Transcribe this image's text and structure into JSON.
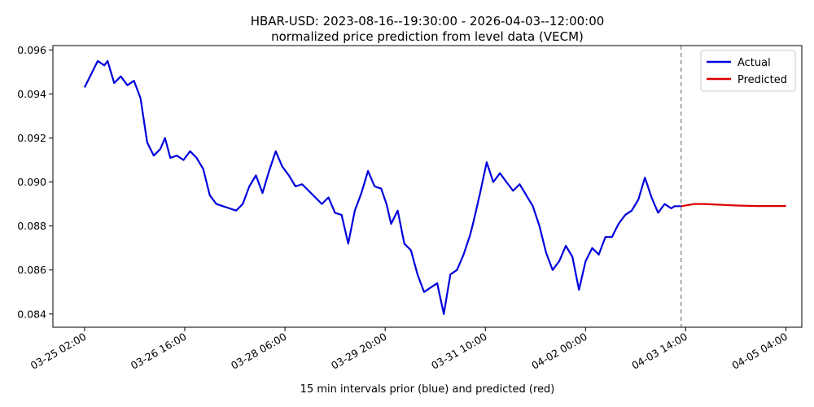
{
  "chart_data": {
    "type": "line",
    "title": "HBAR-USD: 2023-08-16--19:30:00 - 2026-04-03--12:00:00",
    "subtitle": "normalized price prediction from level data (VECM)",
    "xlabel": "15 min intervals prior (blue) and predicted (red)",
    "ylabel": "",
    "x_ticks": [
      "03-25 02:00",
      "03-26 16:00",
      "03-28 06:00",
      "03-29 20:00",
      "03-31 10:00",
      "04-02 00:00",
      "04-03 14:00",
      "04-05 04:00"
    ],
    "x_tick_index": [
      0,
      152,
      304,
      456,
      608,
      760,
      912,
      1064
    ],
    "xlim_index": [
      -48,
      1088
    ],
    "y_ticks": [
      "0.084",
      "0.086",
      "0.088",
      "0.090",
      "0.092",
      "0.094",
      "0.096"
    ],
    "ylim": [
      0.0834,
      0.0962
    ],
    "forecast_start_index": 905,
    "legend": {
      "position": "top-right",
      "items": [
        "Actual",
        "Predicted"
      ]
    },
    "colors": {
      "actual": "#0000dd",
      "predicted": "#dd0000",
      "divider": "#777777"
    },
    "series": [
      {
        "name": "Actual",
        "x": [
          0,
          10,
          20,
          30,
          35,
          45,
          55,
          65,
          75,
          85,
          95,
          105,
          115,
          122,
          130,
          140,
          150,
          160,
          170,
          180,
          190,
          200,
          210,
          220,
          230,
          240,
          250,
          260,
          270,
          280,
          290,
          300,
          310,
          320,
          330,
          340,
          350,
          360,
          370,
          380,
          390,
          400,
          410,
          420,
          430,
          440,
          450,
          458,
          465,
          475,
          485,
          495,
          505,
          515,
          525,
          535,
          545,
          555,
          565,
          575,
          585,
          590,
          600,
          610,
          620,
          630,
          640,
          650,
          660,
          670,
          680,
          690,
          700,
          710,
          720,
          730,
          740,
          750,
          760,
          770,
          780,
          790,
          800,
          810,
          820,
          830,
          840,
          850,
          860,
          870,
          880,
          890,
          895,
          905
        ],
        "values": [
          0.0943,
          0.0949,
          0.0955,
          0.0953,
          0.0955,
          0.0945,
          0.0948,
          0.0944,
          0.0946,
          0.0938,
          0.0918,
          0.0912,
          0.0915,
          0.092,
          0.0911,
          0.0912,
          0.091,
          0.0914,
          0.0911,
          0.0906,
          0.0894,
          0.089,
          0.0889,
          0.0888,
          0.0887,
          0.089,
          0.0898,
          0.0903,
          0.0895,
          0.0905,
          0.0914,
          0.0907,
          0.0903,
          0.0898,
          0.0899,
          0.0896,
          0.0893,
          0.089,
          0.0893,
          0.0886,
          0.0885,
          0.0872,
          0.0887,
          0.0895,
          0.0905,
          0.0898,
          0.0897,
          0.089,
          0.0881,
          0.0887,
          0.0872,
          0.0869,
          0.0858,
          0.085,
          0.0852,
          0.0854,
          0.084,
          0.0858,
          0.086,
          0.0867,
          0.0876,
          0.0882,
          0.0895,
          0.0909,
          0.09,
          0.0904,
          0.09,
          0.0896,
          0.0899,
          0.0894,
          0.0889,
          0.088,
          0.0868,
          0.086,
          0.0864,
          0.0871,
          0.0866,
          0.0851,
          0.0864,
          0.087,
          0.0867,
          0.0875,
          0.0875,
          0.0881,
          0.0885,
          0.0887,
          0.0892,
          0.0902,
          0.0893,
          0.0886,
          0.089,
          0.0888,
          0.0889,
          0.0889
        ]
      },
      {
        "name": "Predicted",
        "x": [
          905,
          915,
          925,
          940,
          960,
          990,
          1020,
          1050,
          1064
        ],
        "values": [
          0.0889,
          0.08895,
          0.089,
          0.089,
          0.08897,
          0.08893,
          0.08891,
          0.08891,
          0.08891
        ]
      }
    ]
  }
}
